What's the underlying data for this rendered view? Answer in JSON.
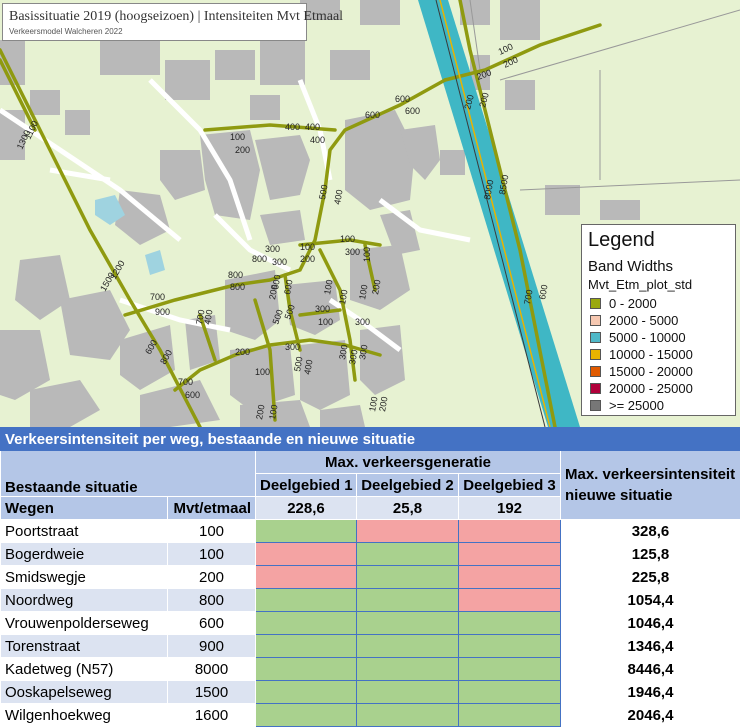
{
  "map": {
    "title": "Basissituatie 2019 (hoogseizoen) | Intensiteiten Mvt Etmaal",
    "subtitle": "Verkeersmodel Walcheren 2022",
    "labels": [
      "1100",
      "1300",
      "1200",
      "1500",
      "700",
      "900",
      "600",
      "800",
      "700",
      "600",
      "100",
      "200",
      "400",
      "400",
      "400",
      "500",
      "400",
      "600",
      "600",
      "600",
      "800",
      "800",
      "800",
      "300",
      "300",
      "100",
      "200",
      "100",
      "300",
      "100",
      "600",
      "600",
      "200",
      "400",
      "500",
      "500",
      "300",
      "100",
      "100",
      "100",
      "100",
      "200",
      "300",
      "700",
      "300",
      "400",
      "200",
      "300",
      "300",
      "300",
      "500",
      "100",
      "100",
      "200",
      "100",
      "200",
      "200",
      "200",
      "200",
      "8500",
      "8000",
      "700",
      "600",
      "100",
      "200"
    ]
  },
  "legend": {
    "title": "Legend",
    "subtitle": "Band Widths",
    "field": "Mvt_Etm_plot_std",
    "items": [
      {
        "label": "0 - 2000",
        "color": "#9aa80f"
      },
      {
        "label": "2000 - 5000",
        "color": "#f6c8b1"
      },
      {
        "label": "5000 - 10000",
        "color": "#4fb8c8"
      },
      {
        "label": "10000 - 15000",
        "color": "#e9b300"
      },
      {
        "label": "15000 - 20000",
        "color": "#e05a00"
      },
      {
        "label": "20000 - 25000",
        "color": "#b0003a"
      },
      {
        "label": ">= 25000",
        "color": "#777777"
      }
    ]
  },
  "table": {
    "caption": "Verkeersintensiteit per weg, bestaande en nieuwe situatie",
    "group_header": "Max. verkeersgeneratie",
    "existing_header": "Bestaande situatie",
    "col_road": "Wegen",
    "col_volume": "Mvt/etmaal",
    "subareas": [
      "Deelgebied 1",
      "Deelgebied 2",
      "Deelgebied 3"
    ],
    "subarea_values": [
      "228,6",
      "25,8",
      "192"
    ],
    "result_header_line1": "Max. verkeersintensiteit",
    "result_header_line2": "nieuwe situatie",
    "rows": [
      {
        "road": "Poortstraat",
        "volume": "100",
        "cells": [
          "green",
          "red",
          "red"
        ],
        "result": "328,6"
      },
      {
        "road": "Bogerdweie",
        "volume": "100",
        "cells": [
          "red",
          "green",
          "red"
        ],
        "result": "125,8"
      },
      {
        "road": "Smidswegje",
        "volume": "200",
        "cells": [
          "red",
          "green",
          "red"
        ],
        "result": "225,8"
      },
      {
        "road": "Noordweg",
        "volume": "800",
        "cells": [
          "green",
          "green",
          "red"
        ],
        "result": "1054,4"
      },
      {
        "road": "Vrouwenpolderseweg",
        "volume": "600",
        "cells": [
          "green",
          "green",
          "green"
        ],
        "result": "1046,4"
      },
      {
        "road": "Torenstraat",
        "volume": "900",
        "cells": [
          "green",
          "green",
          "green"
        ],
        "result": "1346,4"
      },
      {
        "road": "Kadetweg (N57)",
        "volume": "8000",
        "cells": [
          "green",
          "green",
          "green"
        ],
        "result": "8446,4"
      },
      {
        "road": "Ooskapelseweg",
        "volume": "1500",
        "cells": [
          "green",
          "green",
          "green"
        ],
        "result": "1946,4"
      },
      {
        "road": "Wilgenhoekweg",
        "volume": "1600",
        "cells": [
          "green",
          "green",
          "green"
        ],
        "result": "2046,4"
      }
    ]
  }
}
